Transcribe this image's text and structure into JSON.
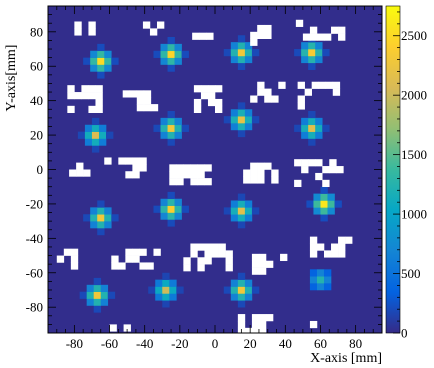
{
  "chart_data": {
    "type": "heatmap",
    "title": "",
    "xlabel": "X-axis [mm]",
    "ylabel": "Y-axis[mm]",
    "xlim": [
      -95,
      95
    ],
    "ylim": [
      -95,
      95
    ],
    "bin_size_mm": 4,
    "xticks": [
      -80,
      -60,
      -40,
      -20,
      0,
      20,
      40,
      60,
      80
    ],
    "yticks": [
      -80,
      -60,
      -40,
      -20,
      0,
      20,
      40,
      60,
      80
    ],
    "colorbar": {
      "range": [
        0,
        2750
      ],
      "ticks": [
        0,
        500,
        1000,
        1500,
        2000,
        2500
      ]
    },
    "background_count": 20,
    "grid": false,
    "hotspots": [
      {
        "x": -65,
        "y": 63,
        "peak": 2500
      },
      {
        "x": -25,
        "y": 67,
        "peak": 2450
      },
      {
        "x": 15,
        "y": 68,
        "peak": 2300
      },
      {
        "x": 55,
        "y": 68,
        "peak": 2350
      },
      {
        "x": -68,
        "y": 20,
        "peak": 2100
      },
      {
        "x": -25,
        "y": 24,
        "peak": 2300
      },
      {
        "x": 15,
        "y": 29,
        "peak": 2200
      },
      {
        "x": 55,
        "y": 24,
        "peak": 2150
      },
      {
        "x": -65,
        "y": -28,
        "peak": 2300
      },
      {
        "x": -25,
        "y": -23,
        "peak": 2400
      },
      {
        "x": 15,
        "y": -24,
        "peak": 2150
      },
      {
        "x": 62,
        "y": -20,
        "peak": 2600
      },
      {
        "x": -67,
        "y": -73,
        "peak": 2300
      },
      {
        "x": -28,
        "y": -70,
        "peak": 2000
      },
      {
        "x": 15,
        "y": -70,
        "peak": 2300
      },
      {
        "x": 60,
        "y": -64,
        "peak": 1250
      }
    ],
    "empty_regions": [
      {
        "x": -75,
        "y": 82,
        "w": 10,
        "h": 8
      },
      {
        "x": -35,
        "y": 82,
        "w": 12,
        "h": 8
      },
      {
        "x": -8,
        "y": 80,
        "w": 10,
        "h": 9
      },
      {
        "x": 25,
        "y": 78,
        "w": 10,
        "h": 12
      },
      {
        "x": 60,
        "y": 80,
        "w": 28,
        "h": 10
      },
      {
        "x": -75,
        "y": 40,
        "w": 18,
        "h": 14
      },
      {
        "x": -40,
        "y": 40,
        "w": 25,
        "h": 12
      },
      {
        "x": -5,
        "y": 40,
        "w": 14,
        "h": 14
      },
      {
        "x": 30,
        "y": 44,
        "w": 20,
        "h": 10
      },
      {
        "x": 58,
        "y": 42,
        "w": 22,
        "h": 14
      },
      {
        "x": -78,
        "y": 0,
        "w": 10,
        "h": 8
      },
      {
        "x": -52,
        "y": 0,
        "w": 22,
        "h": 10
      },
      {
        "x": -15,
        "y": -3,
        "w": 22,
        "h": 12
      },
      {
        "x": 25,
        "y": -3,
        "w": 18,
        "h": 10
      },
      {
        "x": 58,
        "y": -3,
        "w": 26,
        "h": 14
      },
      {
        "x": -80,
        "y": -52,
        "w": 20,
        "h": 12
      },
      {
        "x": -45,
        "y": -52,
        "w": 28,
        "h": 12
      },
      {
        "x": -5,
        "y": -52,
        "w": 26,
        "h": 14
      },
      {
        "x": 28,
        "y": -55,
        "w": 22,
        "h": 12
      },
      {
        "x": 65,
        "y": -45,
        "w": 22,
        "h": 12
      },
      {
        "x": -55,
        "y": -92,
        "w": 10,
        "h": 4
      },
      {
        "x": 20,
        "y": -90,
        "w": 22,
        "h": 12
      },
      {
        "x": 55,
        "y": -90,
        "w": 10,
        "h": 4
      }
    ]
  }
}
